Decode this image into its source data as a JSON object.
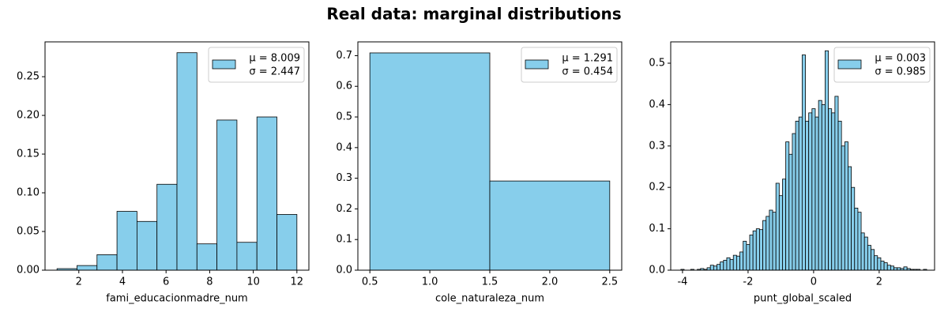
{
  "title": "Real data: marginal distributions",
  "chart_data": [
    {
      "type": "histogram",
      "xlabel": "fami_educacionmadre_num",
      "color": "#87ceeb",
      "edgecolor": "#000000",
      "bins": [
        1,
        1.9167,
        2.8333,
        3.75,
        4.6667,
        5.5833,
        6.5,
        7.4167,
        8.3333,
        9.25,
        10.1667,
        11.0833,
        12
      ],
      "values": [
        0.002,
        0.006,
        0.02,
        0.076,
        0.063,
        0.111,
        0.281,
        0.034,
        0.194,
        0.036,
        0.198,
        0.072
      ],
      "xlim": [
        0.45,
        12.55
      ],
      "ylim": [
        0,
        0.295
      ],
      "xticks": [
        2,
        4,
        6,
        8,
        10,
        12
      ],
      "yticks": [
        {
          "value": 0,
          "label": "0.00"
        },
        {
          "value": 0.05,
          "label": "0.05"
        },
        {
          "value": 0.1,
          "label": "0.10"
        },
        {
          "value": 0.15,
          "label": "0.15"
        },
        {
          "value": 0.2,
          "label": "0.20"
        },
        {
          "value": 0.25,
          "label": "0.25"
        }
      ],
      "legend": "upper right",
      "legend_labels": [
        "μ = 8.009",
        "σ = 2.447"
      ]
    },
    {
      "type": "histogram",
      "xlabel": "cole_naturaleza_num",
      "color": "#87ceeb",
      "edgecolor": "#000000",
      "bins": [
        0.5,
        1.5,
        2.5
      ],
      "values": [
        0.709,
        0.291
      ],
      "xlim": [
        0.4,
        2.6
      ],
      "ylim": [
        0,
        0.745
      ],
      "xticks": [
        0.5,
        {
          "value": 1,
          "label": "1.0"
        },
        1.5,
        {
          "value": 2,
          "label": "2.0"
        },
        2.5
      ],
      "yticks": [
        {
          "value": 0,
          "label": "0.0"
        },
        0.1,
        0.2,
        0.3,
        0.4,
        0.5,
        0.6,
        0.7
      ],
      "legend": "upper right",
      "legend_labels": [
        "μ = 1.291",
        "σ = 0.454"
      ]
    },
    {
      "type": "histogram",
      "xlabel": "punt_global_scaled",
      "color": "#87ceeb",
      "edgecolor": "#000000",
      "bins": [
        -4.05,
        -3.95,
        -3.85,
        -3.75,
        -3.65,
        -3.55,
        -3.45,
        -3.35,
        -3.25,
        -3.15,
        -3.05,
        -2.95,
        -2.85,
        -2.75,
        -2.65,
        -2.55,
        -2.45,
        -2.35,
        -2.25,
        -2.15,
        -2.05,
        -1.95,
        -1.85,
        -1.75,
        -1.65,
        -1.55,
        -1.45,
        -1.35,
        -1.25,
        -1.15,
        -1.05,
        -0.95,
        -0.85,
        -0.75,
        -0.65,
        -0.55,
        -0.45,
        -0.35,
        -0.25,
        -0.15,
        -0.05,
        0.05,
        0.15,
        0.25,
        0.35,
        0.45,
        0.55,
        0.65,
        0.75,
        0.85,
        0.95,
        1.05,
        1.15,
        1.25,
        1.35,
        1.45,
        1.55,
        1.65,
        1.75,
        1.85,
        1.95,
        2.05,
        2.15,
        2.25,
        2.35,
        2.45,
        2.55,
        2.65,
        2.75,
        2.85,
        2.95,
        3.05,
        3.15,
        3.25,
        3.35,
        3.45
      ],
      "values": [
        0.002,
        0,
        0,
        0.002,
        0,
        0.002,
        0.004,
        0.002,
        0.006,
        0.012,
        0.01,
        0.014,
        0.02,
        0.024,
        0.03,
        0.026,
        0.036,
        0.034,
        0.044,
        0.07,
        0.062,
        0.085,
        0.095,
        0.1,
        0.098,
        0.12,
        0.13,
        0.145,
        0.14,
        0.21,
        0.18,
        0.22,
        0.31,
        0.28,
        0.33,
        0.36,
        0.37,
        0.52,
        0.36,
        0.38,
        0.39,
        0.37,
        0.41,
        0.4,
        0.53,
        0.39,
        0.38,
        0.42,
        0.36,
        0.3,
        0.31,
        0.25,
        0.2,
        0.15,
        0.14,
        0.09,
        0.08,
        0.06,
        0.05,
        0.035,
        0.03,
        0.022,
        0.018,
        0.012,
        0.01,
        0.006,
        0.006,
        0.004,
        0.008,
        0.004,
        0.002,
        0.002,
        0.002,
        0,
        0.002
      ],
      "xlim": [
        -4.36,
        3.69
      ],
      "ylim": [
        0,
        0.5515
      ],
      "xticks": [
        -4,
        -2,
        0,
        2
      ],
      "yticks": [
        {
          "value": 0,
          "label": "0.0"
        },
        0.1,
        0.2,
        0.3,
        0.4,
        0.5
      ],
      "legend": "upper right",
      "legend_labels": [
        "μ = 0.003",
        "σ = 0.985"
      ]
    }
  ]
}
